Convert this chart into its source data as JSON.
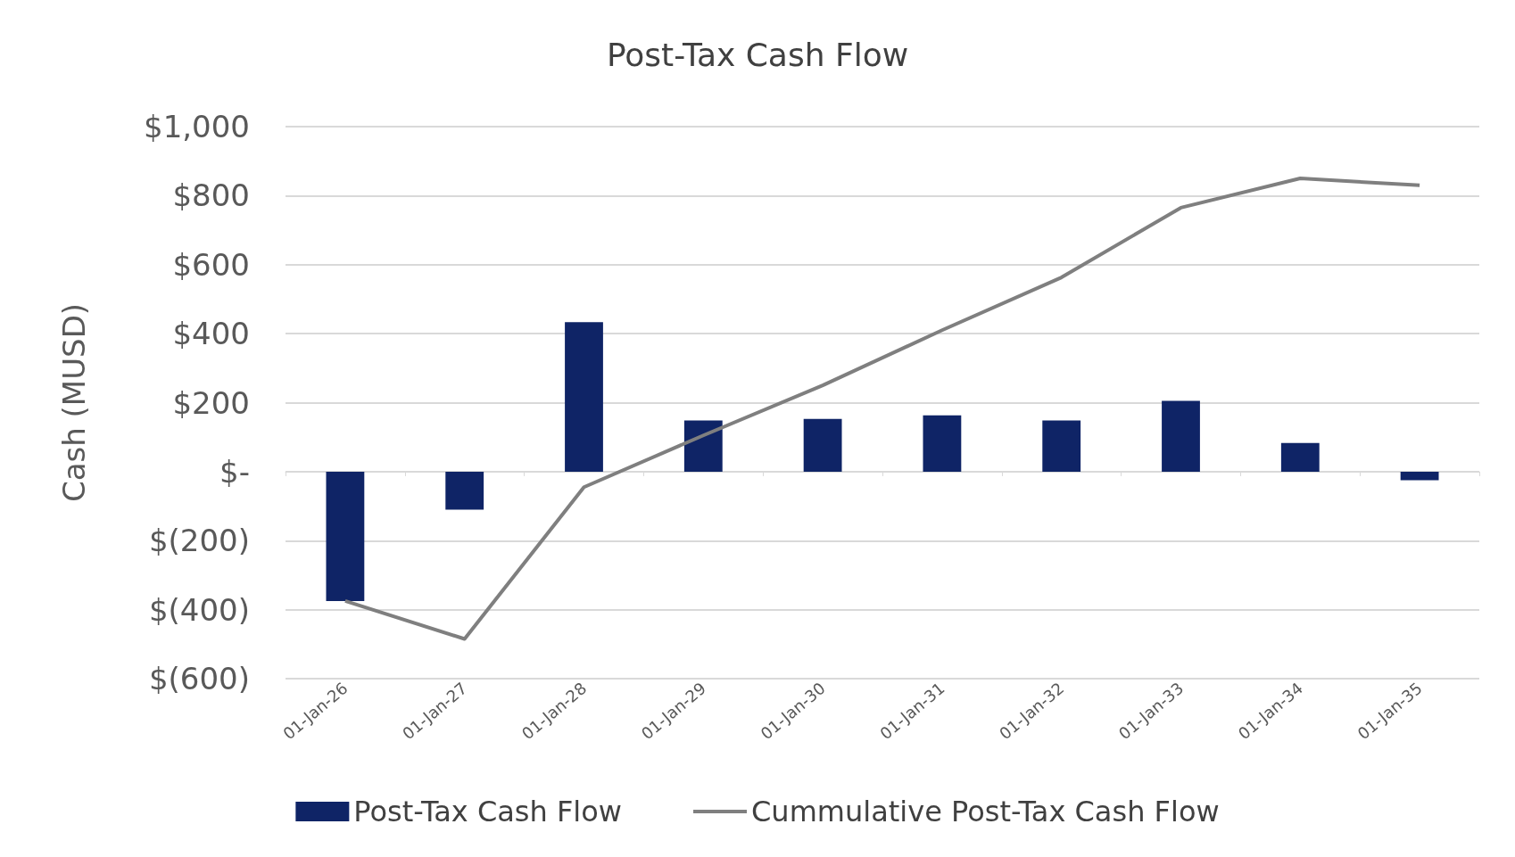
{
  "chart_data": {
    "type": "bar",
    "title": "Post-Tax Cash Flow",
    "ylabel": "Cash (MUSD)",
    "categories": [
      "01-Jan-26",
      "01-Jan-27",
      "01-Jan-28",
      "01-Jan-29",
      "01-Jan-30",
      "01-Jan-31",
      "01-Jan-32",
      "01-Jan-33",
      "01-Jan-34",
      "01-Jan-35"
    ],
    "series": [
      {
        "name": "Post-Tax Cash Flow",
        "color": "#0f2466",
        "values": [
          -375,
          -110,
          433,
          148,
          153,
          163,
          148,
          205,
          83,
          -25
        ]
      },
      {
        "name": "Cummulative Post-Tax Cash Flow",
        "type": "line",
        "color": "#7f7f7f",
        "values": [
          -375,
          -485,
          -45,
          105,
          250,
          410,
          563,
          765,
          850,
          830
        ]
      }
    ],
    "ylim": [
      -600,
      1000
    ],
    "yticks": [
      {
        "value": -600,
        "label": "$(600)"
      },
      {
        "value": -400,
        "label": "$(400)"
      },
      {
        "value": -200,
        "label": "$(200)"
      },
      {
        "value": 0,
        "label": "$-"
      },
      {
        "value": 200,
        "label": "$200"
      },
      {
        "value": 400,
        "label": "$400"
      },
      {
        "value": 600,
        "label": "$600"
      },
      {
        "value": 800,
        "label": "$800"
      },
      {
        "value": 1000,
        "label": "$1,000"
      }
    ],
    "grid": "y",
    "legend": "bottom",
    "marker": "none",
    "line_style": "solid"
  }
}
